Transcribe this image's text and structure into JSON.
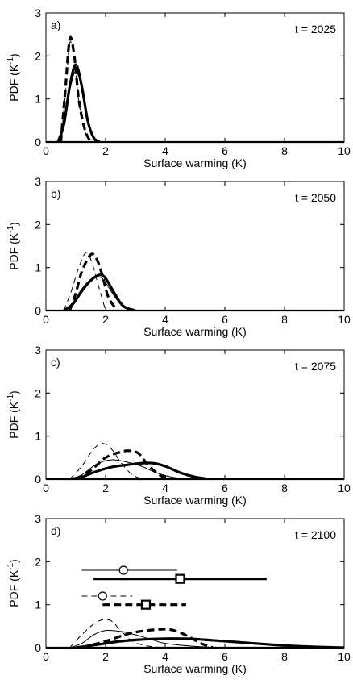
{
  "chart_data": [
    {
      "type": "line",
      "panel_label": "a)",
      "annotation": "t = 2025",
      "xlabel": "Surface warming (K)",
      "ylabel_main": "PDF (K",
      "ylabel_sup": "-1",
      "ylabel_close": ")",
      "xlim": [
        0,
        10
      ],
      "ylim": [
        0,
        3
      ],
      "xticks": [
        0,
        2,
        4,
        6,
        8,
        10
      ],
      "yticks": [
        0,
        1,
        2,
        3
      ],
      "grid": false,
      "series": [
        {
          "style": "thick-solid",
          "x": [
            0.4,
            0.6,
            0.8,
            1.0,
            1.2,
            1.4,
            1.6,
            1.8
          ],
          "y": [
            0,
            0.4,
            1.3,
            1.8,
            1.3,
            0.5,
            0.1,
            0
          ]
        },
        {
          "style": "thin-solid",
          "x": [
            0.4,
            0.6,
            0.8,
            1.0,
            1.2,
            1.4,
            1.6,
            1.8
          ],
          "y": [
            0,
            0.35,
            1.2,
            1.65,
            1.25,
            0.55,
            0.12,
            0
          ]
        },
        {
          "style": "thick-dashed",
          "x": [
            0.5,
            0.65,
            0.8,
            0.95,
            1.1,
            1.3,
            1.5
          ],
          "y": [
            0,
            1.2,
            2.4,
            2.0,
            1.0,
            0.3,
            0
          ]
        },
        {
          "style": "thin-dashed",
          "x": [
            0.5,
            0.65,
            0.8,
            0.95,
            1.1,
            1.3,
            1.5
          ],
          "y": [
            0,
            1.1,
            2.3,
            1.9,
            0.95,
            0.28,
            0
          ]
        }
      ],
      "intervals": []
    },
    {
      "type": "line",
      "panel_label": "b)",
      "annotation": "t = 2050",
      "xlabel": "Surface warming (K)",
      "ylabel_main": "PDF (K",
      "ylabel_sup": "-1",
      "ylabel_close": ")",
      "xlim": [
        0,
        10
      ],
      "ylim": [
        0,
        3
      ],
      "xticks": [
        0,
        2,
        4,
        6,
        8,
        10
      ],
      "yticks": [
        0,
        1,
        2,
        3
      ],
      "grid": false,
      "series": [
        {
          "style": "thick-solid",
          "x": [
            0.6,
            0.9,
            1.2,
            1.5,
            1.8,
            2.0,
            2.3,
            2.6,
            3.0
          ],
          "y": [
            0,
            0.15,
            0.45,
            0.7,
            0.83,
            0.75,
            0.4,
            0.1,
            0
          ]
        },
        {
          "style": "thin-solid",
          "x": [
            0.6,
            0.9,
            1.2,
            1.5,
            1.8,
            2.0,
            2.3,
            2.6,
            3.0
          ],
          "y": [
            0,
            0.18,
            0.5,
            0.72,
            0.78,
            0.65,
            0.33,
            0.08,
            0
          ]
        },
        {
          "style": "thick-dashed",
          "x": [
            0.8,
            1.0,
            1.2,
            1.5,
            1.7,
            1.9,
            2.1,
            2.4
          ],
          "y": [
            0,
            0.4,
            0.9,
            1.3,
            1.2,
            0.8,
            0.3,
            0
          ]
        },
        {
          "style": "thin-dashed",
          "x": [
            0.6,
            0.85,
            1.1,
            1.35,
            1.55,
            1.75,
            2.0
          ],
          "y": [
            0,
            0.45,
            1.0,
            1.35,
            1.1,
            0.6,
            0
          ]
        }
      ],
      "intervals": []
    },
    {
      "type": "line",
      "panel_label": "c)",
      "annotation": "t = 2075",
      "xlabel": "Surface warming (K)",
      "ylabel_main": "PDF (K",
      "ylabel_sup": "-1",
      "ylabel_close": ")",
      "xlim": [
        0,
        10
      ],
      "ylim": [
        0,
        3
      ],
      "xticks": [
        0,
        2,
        4,
        6,
        8,
        10
      ],
      "yticks": [
        0,
        1,
        2,
        3
      ],
      "grid": false,
      "series": [
        {
          "style": "thick-solid",
          "x": [
            0.8,
            1.2,
            1.7,
            2.2,
            2.7,
            3.2,
            3.6,
            4.0,
            4.5,
            5.0,
            5.5
          ],
          "y": [
            0,
            0.05,
            0.18,
            0.28,
            0.33,
            0.37,
            0.37,
            0.3,
            0.15,
            0.05,
            0
          ]
        },
        {
          "style": "thin-solid",
          "x": [
            0.8,
            1.2,
            1.7,
            2.2,
            2.7,
            3.2,
            3.7,
            4.2,
            4.8
          ],
          "y": [
            0,
            0.1,
            0.35,
            0.45,
            0.4,
            0.3,
            0.15,
            0.05,
            0
          ]
        },
        {
          "style": "thick-dashed",
          "x": [
            1.0,
            1.5,
            2.0,
            2.5,
            2.8,
            3.1,
            3.4,
            3.8,
            4.2
          ],
          "y": [
            0,
            0.2,
            0.5,
            0.63,
            0.66,
            0.6,
            0.35,
            0.1,
            0
          ]
        },
        {
          "style": "thin-dashed",
          "x": [
            0.8,
            1.2,
            1.6,
            1.9,
            2.2,
            2.5,
            2.9,
            3.3
          ],
          "y": [
            0,
            0.3,
            0.7,
            0.83,
            0.7,
            0.4,
            0.1,
            0
          ]
        }
      ],
      "intervals": []
    },
    {
      "type": "line",
      "panel_label": "d)",
      "annotation": "t = 2100",
      "xlabel": "Surface warming (K)",
      "ylabel_main": "PDF (K",
      "ylabel_sup": "-1",
      "ylabel_close": ")",
      "xlim": [
        0,
        10
      ],
      "ylim": [
        0,
        3
      ],
      "xticks": [
        0,
        2,
        4,
        6,
        8,
        10
      ],
      "yticks": [
        0,
        1,
        2,
        3
      ],
      "grid": false,
      "series": [
        {
          "style": "thick-solid",
          "x": [
            1.0,
            1.5,
            2.0,
            2.5,
            3.0,
            3.5,
            4.0,
            4.5,
            5.0,
            6.0,
            7.0,
            8.0,
            9.0,
            10.0
          ],
          "y": [
            0,
            0.05,
            0.1,
            0.15,
            0.18,
            0.2,
            0.21,
            0.21,
            0.2,
            0.15,
            0.1,
            0.05,
            0.02,
            0
          ]
        },
        {
          "style": "thin-solid",
          "x": [
            0.8,
            1.2,
            1.6,
            2.0,
            2.5,
            3.0,
            3.5,
            4.0,
            5.0,
            6.0
          ],
          "y": [
            0,
            0.1,
            0.3,
            0.4,
            0.38,
            0.3,
            0.2,
            0.1,
            0.03,
            0
          ]
        },
        {
          "style": "thick-dashed",
          "x": [
            1.2,
            2.0,
            2.8,
            3.4,
            4.0,
            4.4,
            4.8,
            5.2,
            5.6
          ],
          "y": [
            0,
            0.15,
            0.33,
            0.4,
            0.43,
            0.38,
            0.25,
            0.1,
            0
          ]
        },
        {
          "style": "thin-dashed",
          "x": [
            0.8,
            1.2,
            1.6,
            1.9,
            2.2,
            2.5,
            2.9,
            3.4,
            4.0
          ],
          "y": [
            0,
            0.3,
            0.55,
            0.65,
            0.62,
            0.4,
            0.15,
            0.04,
            0
          ]
        }
      ],
      "intervals": [
        {
          "style": "thin-solid",
          "x0": 1.2,
          "x1": 4.4,
          "y": 1.8,
          "center": 2.6,
          "marker": "circle"
        },
        {
          "style": "thick-solid",
          "x0": 1.6,
          "x1": 7.4,
          "y": 1.6,
          "center": 4.5,
          "marker": "square"
        },
        {
          "style": "thin-dashed",
          "x0": 1.2,
          "x1": 2.9,
          "y": 1.2,
          "center": 1.9,
          "marker": "circle"
        },
        {
          "style": "thick-dashed",
          "x0": 1.9,
          "x1": 4.7,
          "y": 1.0,
          "center": 3.35,
          "marker": "square"
        }
      ]
    }
  ]
}
